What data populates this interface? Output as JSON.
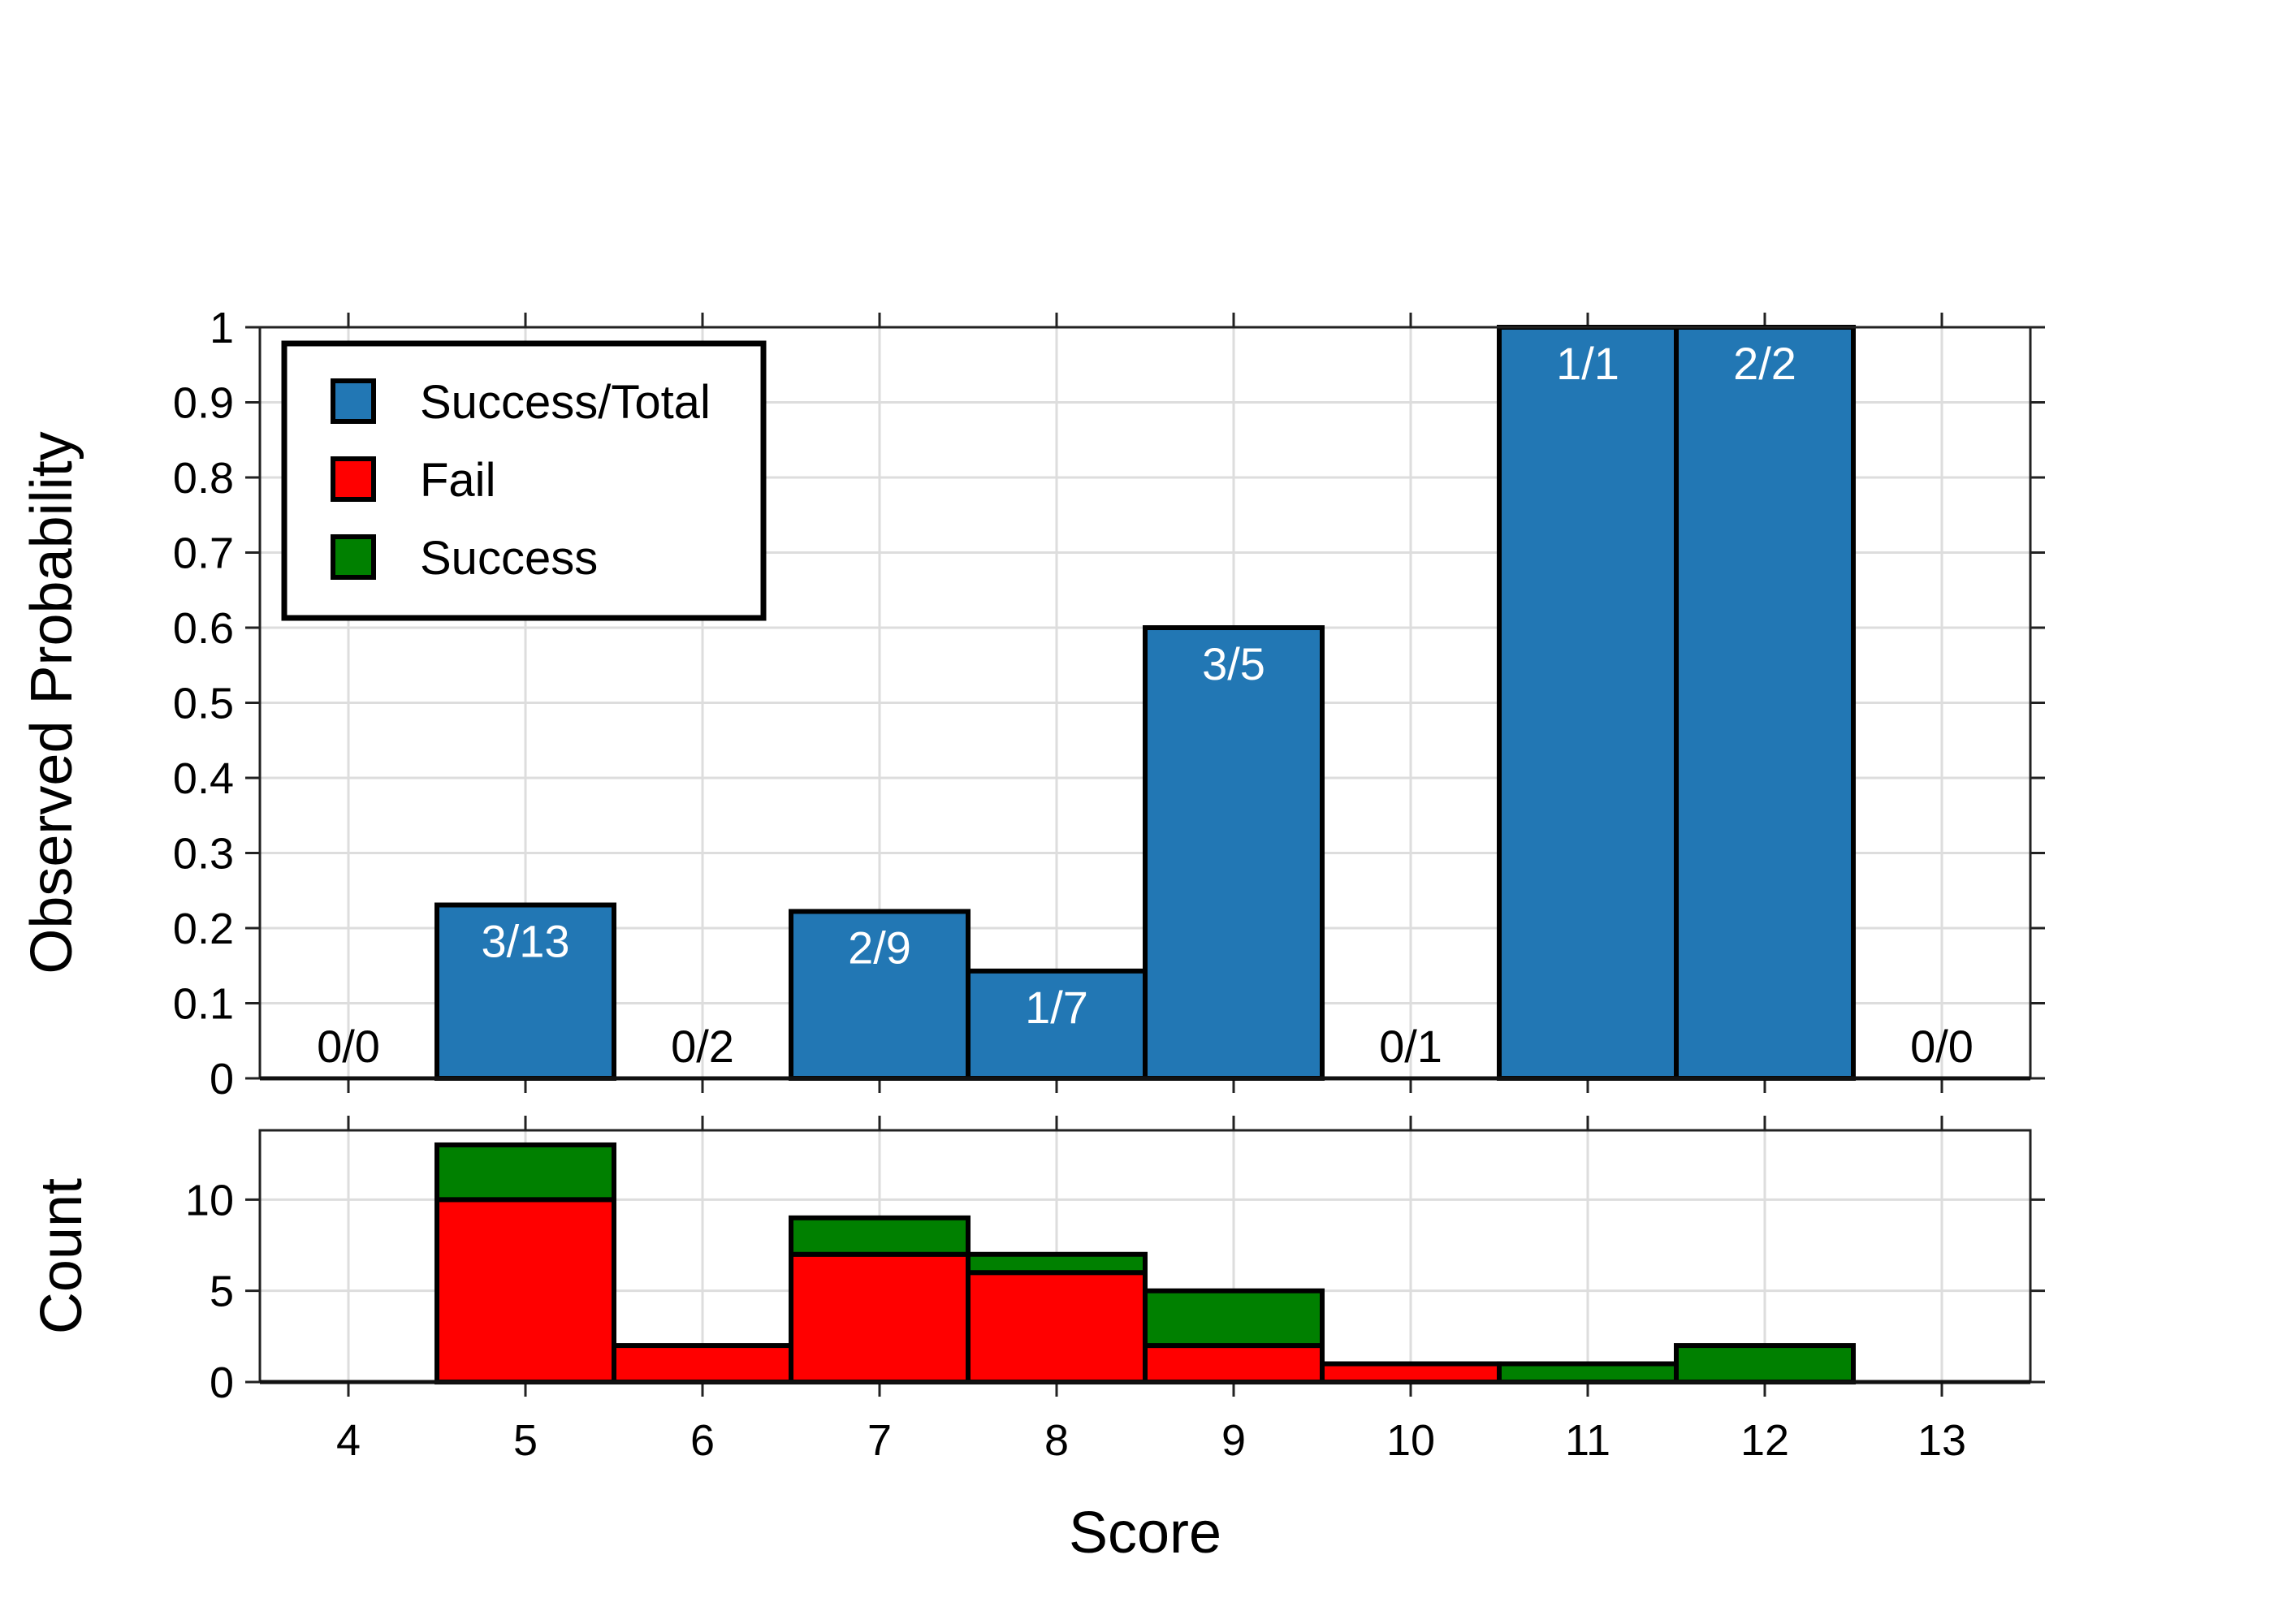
{
  "chart_data": [
    {
      "type": "bar",
      "panel": "top",
      "ylabel": "Observed Probability",
      "ylim": [
        0,
        1
      ],
      "yticks": [
        "0",
        "0.1",
        "0.2",
        "0.3",
        "0.4",
        "0.5",
        "0.6",
        "0.7",
        "0.8",
        "0.9",
        "1"
      ],
      "grid": true,
      "x": [
        4,
        5,
        6,
        7,
        8,
        9,
        10,
        11,
        12,
        13
      ],
      "series": [
        {
          "name": "Success/Total",
          "color": "#2277b4",
          "values": [
            0,
            0.2308,
            0,
            0.2222,
            0.1429,
            0.6,
            0,
            1,
            1,
            0
          ],
          "labels": [
            "0/0",
            "3/13",
            "0/2",
            "2/9",
            "1/7",
            "3/5",
            "0/1",
            "1/1",
            "2/2",
            "0/0"
          ]
        }
      ],
      "legend": {
        "placement": "top-left",
        "entries": [
          {
            "label": "Success/Total",
            "color": "#2277b4"
          },
          {
            "label": "Fail",
            "color": "#ff0000"
          },
          {
            "label": "Success",
            "color": "#008000"
          }
        ]
      }
    },
    {
      "type": "bar",
      "panel": "bottom",
      "stacked": true,
      "xlabel": "Score",
      "ylabel": "Count",
      "ylim": [
        0,
        13.8
      ],
      "yticks": [
        "0",
        "5",
        "10"
      ],
      "grid": true,
      "x": [
        4,
        5,
        6,
        7,
        8,
        9,
        10,
        11,
        12,
        13
      ],
      "xticks": [
        "4",
        "5",
        "6",
        "7",
        "8",
        "9",
        "10",
        "11",
        "12",
        "13"
      ],
      "series": [
        {
          "name": "Fail",
          "color": "#ff0000",
          "values": [
            0,
            10,
            2,
            7,
            6,
            2,
            1,
            0,
            0,
            0
          ]
        },
        {
          "name": "Success",
          "color": "#008000",
          "values": [
            0,
            3,
            0,
            2,
            1,
            3,
            0,
            1,
            2,
            0
          ]
        }
      ]
    }
  ]
}
